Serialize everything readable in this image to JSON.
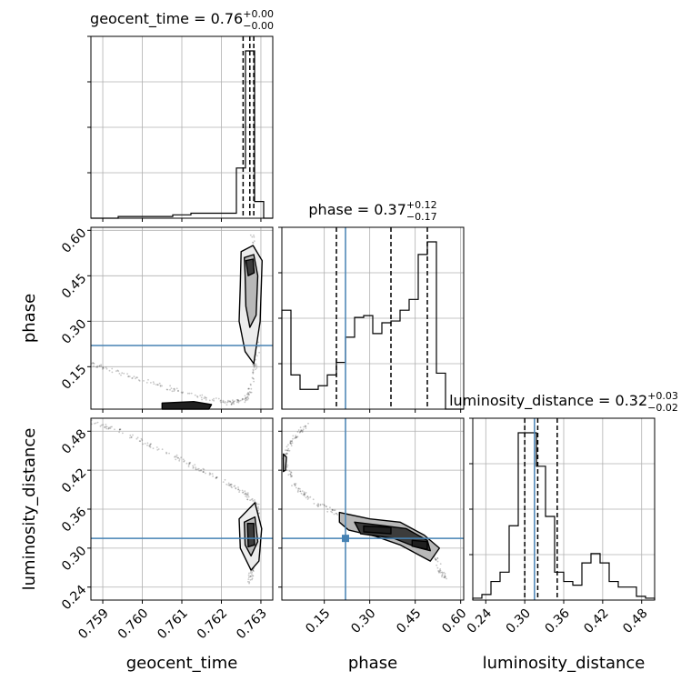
{
  "chart_data": {
    "type": "corner",
    "parameters": [
      "geocent_time",
      "phase",
      "luminosity_distance"
    ],
    "axis_labels": [
      "geocent_time",
      "phase",
      "luminosity_distance"
    ],
    "ranges": [
      [
        0.7587,
        0.7633
      ],
      [
        0.01,
        0.61
      ],
      [
        0.22,
        0.5
      ]
    ],
    "ticks": [
      {
        "values": [
          0.759,
          0.76,
          0.761,
          0.762,
          0.763
        ],
        "labels": [
          "0.759",
          "0.760",
          "0.761",
          "0.762",
          "0.763"
        ]
      },
      {
        "values": [
          0.15,
          0.3,
          0.45,
          0.6
        ],
        "labels": [
          "0.15",
          "0.30",
          "0.45",
          "0.60"
        ]
      },
      {
        "values": [
          0.24,
          0.3,
          0.36,
          0.42,
          0.48
        ],
        "labels": [
          "0.24",
          "0.30",
          "0.36",
          "0.42",
          "0.48"
        ]
      }
    ],
    "truths": [
      null,
      0.22,
      0.315
    ],
    "truth_color": "#4682b4",
    "grid": true,
    "titles": [
      {
        "text": "geocent_time = 0.76",
        "sup": "+0.00",
        "sub": "−0.00"
      },
      {
        "text": "phase = 0.37",
        "sup": "+0.12",
        "sub": "−0.17"
      },
      {
        "text": "luminosity_distance = 0.32",
        "sup": "+0.03",
        "sub": "−0.02"
      }
    ],
    "quantiles": [
      [
        0.76255,
        0.76272,
        0.76282
      ],
      [
        0.19,
        0.37,
        0.49
      ],
      [
        0.3,
        0.32,
        0.35
      ]
    ],
    "histograms": [
      {
        "edges": [
          0.7587,
          0.75893,
          0.75916,
          0.75939,
          0.75962,
          0.75985,
          0.76008,
          0.76031,
          0.76054,
          0.76077,
          0.761,
          0.76123,
          0.76146,
          0.76169,
          0.76192,
          0.76215,
          0.76238,
          0.76261,
          0.76284,
          0.76307,
          0.7633
        ],
        "counts": [
          0,
          0,
          0,
          1,
          1,
          1,
          1,
          1,
          1,
          2,
          2,
          3,
          3,
          3,
          3,
          3,
          30,
          100,
          10,
          0
        ]
      },
      {
        "edges": [
          0.01,
          0.04,
          0.07,
          0.1,
          0.13,
          0.16,
          0.19,
          0.22,
          0.25,
          0.28,
          0.31,
          0.34,
          0.37,
          0.4,
          0.43,
          0.46,
          0.49,
          0.52,
          0.55,
          0.58,
          0.61
        ],
        "counts": [
          55,
          19,
          11,
          11,
          13,
          19,
          26,
          40,
          51,
          52,
          42,
          48,
          49,
          55,
          61,
          86,
          93,
          20,
          0,
          0
        ]
      },
      {
        "edges": [
          0.22,
          0.234,
          0.248,
          0.262,
          0.276,
          0.29,
          0.304,
          0.318,
          0.332,
          0.346,
          0.36,
          0.374,
          0.388,
          0.402,
          0.416,
          0.43,
          0.444,
          0.458,
          0.472,
          0.486,
          0.5
        ],
        "counts": [
          1,
          3,
          10,
          15,
          40,
          90,
          90,
          72,
          45,
          15,
          10,
          8,
          20,
          25,
          20,
          10,
          7,
          7,
          2,
          1
        ]
      }
    ],
    "contours": [
      {
        "x": 0,
        "y": 1,
        "levels": [
          [
            [
              0.7625,
              0.53
            ],
            [
              0.7628,
              0.55
            ],
            [
              0.76303,
              0.5
            ],
            [
              0.76298,
              0.3
            ],
            [
              0.76282,
              0.16
            ],
            [
              0.7626,
              0.2
            ],
            [
              0.76245,
              0.3
            ],
            [
              0.76248,
              0.42
            ]
          ],
          [
            [
              0.76258,
              0.51
            ],
            [
              0.76282,
              0.52
            ],
            [
              0.76292,
              0.45
            ],
            [
              0.76288,
              0.32
            ],
            [
              0.76272,
              0.28
            ],
            [
              0.76262,
              0.35
            ],
            [
              0.7626,
              0.45
            ]
          ],
          [
            [
              0.76262,
              0.5
            ],
            [
              0.7628,
              0.505
            ],
            [
              0.76283,
              0.46
            ],
            [
              0.76268,
              0.45
            ]
          ],
          [
            [
              0.7605,
              0.03
            ],
            [
              0.7613,
              0.035
            ],
            [
              0.76175,
              0.025
            ],
            [
              0.76168,
              0.01
            ],
            [
              0.7605,
              0.01
            ]
          ]
        ]
      },
      {
        "x": 0,
        "y": 2,
        "levels": [
          [
            [
              0.76245,
              0.345
            ],
            [
              0.76285,
              0.37
            ],
            [
              0.76302,
              0.33
            ],
            [
              0.76295,
              0.28
            ],
            [
              0.76275,
              0.266
            ],
            [
              0.76248,
              0.3
            ]
          ],
          [
            [
              0.76258,
              0.34
            ],
            [
              0.76285,
              0.348
            ],
            [
              0.76292,
              0.31
            ],
            [
              0.76275,
              0.288
            ],
            [
              0.7626,
              0.305
            ]
          ],
          [
            [
              0.76266,
              0.338
            ],
            [
              0.76282,
              0.338
            ],
            [
              0.76284,
              0.305
            ],
            [
              0.76268,
              0.302
            ]
          ]
        ]
      },
      {
        "x": 1,
        "y": 2,
        "levels": [
          [
            [
              0.015,
              0.445
            ],
            [
              0.025,
              0.44
            ],
            [
              0.022,
              0.42
            ],
            [
              0.015,
              0.418
            ]
          ],
          [
            [
              0.2,
              0.355
            ],
            [
              0.3,
              0.345
            ],
            [
              0.4,
              0.34
            ],
            [
              0.48,
              0.32
            ],
            [
              0.53,
              0.3
            ],
            [
              0.5,
              0.28
            ],
            [
              0.46,
              0.29
            ],
            [
              0.4,
              0.305
            ],
            [
              0.32,
              0.318
            ],
            [
              0.23,
              0.328
            ],
            [
              0.2,
              0.34
            ]
          ],
          [
            [
              0.25,
              0.34
            ],
            [
              0.34,
              0.335
            ],
            [
              0.42,
              0.33
            ],
            [
              0.49,
              0.312
            ],
            [
              0.5,
              0.296
            ],
            [
              0.45,
              0.302
            ],
            [
              0.38,
              0.315
            ],
            [
              0.27,
              0.322
            ]
          ],
          [
            [
              0.28,
              0.334
            ],
            [
              0.37,
              0.332
            ],
            [
              0.37,
              0.322
            ],
            [
              0.28,
              0.325
            ]
          ],
          [
            [
              0.44,
              0.312
            ],
            [
              0.49,
              0.31
            ],
            [
              0.49,
              0.298
            ],
            [
              0.44,
              0.303
            ]
          ]
        ]
      }
    ],
    "scatter_paths": [
      {
        "x": 0,
        "y": 1,
        "points": [
          [
            0.7587,
            0.16
          ],
          [
            0.7595,
            0.125
          ],
          [
            0.7605,
            0.085
          ],
          [
            0.7615,
            0.05
          ],
          [
            0.7622,
            0.03
          ],
          [
            0.7626,
            0.04
          ],
          [
            0.7628,
            0.1
          ],
          [
            0.7629,
            0.2
          ],
          [
            0.7629,
            0.35
          ],
          [
            0.7628,
            0.5
          ],
          [
            0.7628,
            0.58
          ]
        ]
      },
      {
        "x": 0,
        "y": 2,
        "points": [
          [
            0.7587,
            0.495
          ],
          [
            0.7595,
            0.478
          ],
          [
            0.7605,
            0.45
          ],
          [
            0.7613,
            0.426
          ],
          [
            0.762,
            0.405
          ],
          [
            0.7626,
            0.385
          ],
          [
            0.7629,
            0.365
          ],
          [
            0.7629,
            0.32
          ],
          [
            0.7628,
            0.27
          ],
          [
            0.7627,
            0.245
          ]
        ]
      },
      {
        "x": 1,
        "y": 2,
        "points": [
          [
            0.1,
            0.492
          ],
          [
            0.05,
            0.47
          ],
          [
            0.015,
            0.44
          ],
          [
            0.05,
            0.395
          ],
          [
            0.12,
            0.37
          ],
          [
            0.2,
            0.35
          ],
          [
            0.3,
            0.34
          ],
          [
            0.4,
            0.325
          ],
          [
            0.48,
            0.305
          ],
          [
            0.52,
            0.28
          ],
          [
            0.55,
            0.25
          ]
        ]
      }
    ]
  }
}
